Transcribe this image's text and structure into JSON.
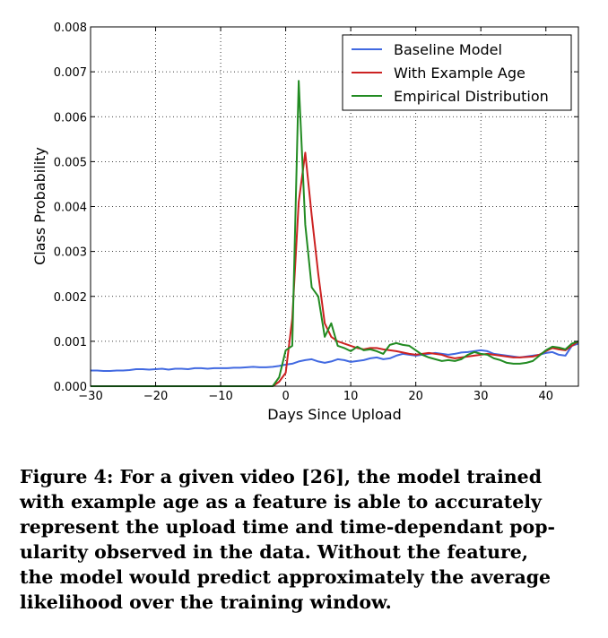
{
  "chart_data": {
    "type": "line",
    "xlabel": "Days Since Upload",
    "ylabel": "Class Probability",
    "xlim": [
      -30,
      45
    ],
    "ylim": [
      0,
      0.008
    ],
    "x_ticks": [
      "−30",
      "−20",
      "−10",
      "0",
      "10",
      "20",
      "30",
      "40"
    ],
    "x_tick_values": [
      -30,
      -20,
      -10,
      0,
      10,
      20,
      30,
      40
    ],
    "y_ticks": [
      "0.000",
      "0.001",
      "0.002",
      "0.003",
      "0.004",
      "0.005",
      "0.006",
      "0.007",
      "0.008"
    ],
    "y_tick_values": [
      0,
      0.001,
      0.002,
      0.003,
      0.004,
      0.005,
      0.006,
      0.007,
      0.008
    ],
    "grid": true,
    "legend_position": "top-right",
    "series": [
      {
        "name": "Baseline Model",
        "color": "#4169e1",
        "x": [
          -30,
          -29,
          -28,
          -27,
          -26,
          -25,
          -24,
          -23,
          -22,
          -21,
          -20,
          -19,
          -18,
          -17,
          -16,
          -15,
          -14,
          -13,
          -12,
          -11,
          -10,
          -9,
          -8,
          -7,
          -6,
          -5,
          -4,
          -3,
          -2,
          -1,
          0,
          1,
          2,
          3,
          4,
          5,
          6,
          7,
          8,
          9,
          10,
          11,
          12,
          13,
          14,
          15,
          16,
          17,
          18,
          19,
          20,
          21,
          22,
          23,
          24,
          25,
          26,
          27,
          28,
          29,
          30,
          31,
          32,
          33,
          34,
          35,
          36,
          37,
          38,
          39,
          40,
          41,
          42,
          43,
          44,
          45
        ],
        "y": [
          0.00035,
          0.00035,
          0.00034,
          0.00034,
          0.00035,
          0.00035,
          0.00036,
          0.00038,
          0.00038,
          0.00037,
          0.00038,
          0.00039,
          0.00037,
          0.00039,
          0.00039,
          0.00038,
          0.0004,
          0.0004,
          0.00039,
          0.0004,
          0.0004,
          0.0004,
          0.00041,
          0.00041,
          0.00042,
          0.00043,
          0.00042,
          0.00042,
          0.00043,
          0.00045,
          0.00048,
          0.0005,
          0.00055,
          0.00058,
          0.0006,
          0.00055,
          0.00052,
          0.00055,
          0.0006,
          0.00058,
          0.00054,
          0.00056,
          0.00058,
          0.00062,
          0.00064,
          0.0006,
          0.00062,
          0.00068,
          0.00072,
          0.0007,
          0.00068,
          0.0007,
          0.00072,
          0.00074,
          0.00072,
          0.0007,
          0.00072,
          0.00075,
          0.00076,
          0.00078,
          0.0008,
          0.00078,
          0.00072,
          0.0007,
          0.00068,
          0.00066,
          0.00064,
          0.00066,
          0.00068,
          0.0007,
          0.00074,
          0.00076,
          0.0007,
          0.00068,
          0.0009,
          0.00095
        ]
      },
      {
        "name": "With Example Age",
        "color": "#cc2222",
        "x": [
          -30,
          -5,
          -2,
          -1,
          0,
          1,
          2,
          3,
          4,
          5,
          6,
          7,
          8,
          9,
          10,
          11,
          12,
          13,
          14,
          15,
          16,
          17,
          18,
          19,
          20,
          21,
          22,
          23,
          24,
          25,
          26,
          27,
          28,
          29,
          30,
          31,
          32,
          33,
          34,
          35,
          36,
          37,
          38,
          39,
          40,
          41,
          42,
          43,
          44,
          45
        ],
        "y": [
          0,
          0,
          0,
          0.0001,
          0.0003,
          0.0015,
          0.0041,
          0.0052,
          0.0038,
          0.0025,
          0.0014,
          0.0011,
          0.001,
          0.00095,
          0.0009,
          0.00085,
          0.00082,
          0.00085,
          0.00085,
          0.00082,
          0.0008,
          0.00078,
          0.00075,
          0.00072,
          0.0007,
          0.00072,
          0.00074,
          0.00072,
          0.0007,
          0.00065,
          0.00062,
          0.00064,
          0.00066,
          0.00068,
          0.0007,
          0.00072,
          0.0007,
          0.00068,
          0.00066,
          0.00064,
          0.00064,
          0.00065,
          0.00066,
          0.0007,
          0.00078,
          0.00085,
          0.00082,
          0.0008,
          0.0009,
          0.001
        ]
      },
      {
        "name": "Empirical Distribution",
        "color": "#228b22",
        "x": [
          -30,
          -5,
          -2,
          -1,
          0,
          1,
          2,
          3,
          4,
          5,
          6,
          7,
          8,
          9,
          10,
          11,
          12,
          13,
          14,
          15,
          16,
          17,
          18,
          19,
          20,
          21,
          22,
          23,
          24,
          25,
          26,
          27,
          28,
          29,
          30,
          31,
          32,
          33,
          34,
          35,
          36,
          37,
          38,
          39,
          40,
          41,
          42,
          43,
          44,
          45
        ],
        "y": [
          0,
          0,
          0,
          0.0002,
          0.0008,
          0.0009,
          0.0068,
          0.0036,
          0.0022,
          0.002,
          0.0011,
          0.0014,
          0.0009,
          0.00085,
          0.00078,
          0.00088,
          0.0008,
          0.00082,
          0.00078,
          0.00072,
          0.00092,
          0.00096,
          0.00092,
          0.0009,
          0.0008,
          0.0007,
          0.00064,
          0.0006,
          0.00056,
          0.00058,
          0.00056,
          0.0006,
          0.0007,
          0.00076,
          0.00072,
          0.0007,
          0.00062,
          0.00058,
          0.00052,
          0.0005,
          0.0005,
          0.00052,
          0.00056,
          0.00068,
          0.0008,
          0.00088,
          0.00086,
          0.00082,
          0.00095,
          0.001
        ]
      }
    ]
  },
  "caption": {
    "text": "Figure 4: For a given video [26], the model trained\nwith example age as a feature is able to accurately\nrepresent the upload time and time-dependant pop-\nularity observed in the data.  Without the feature,\nthe model would predict approximately the average\nlikelihood over the training window."
  }
}
